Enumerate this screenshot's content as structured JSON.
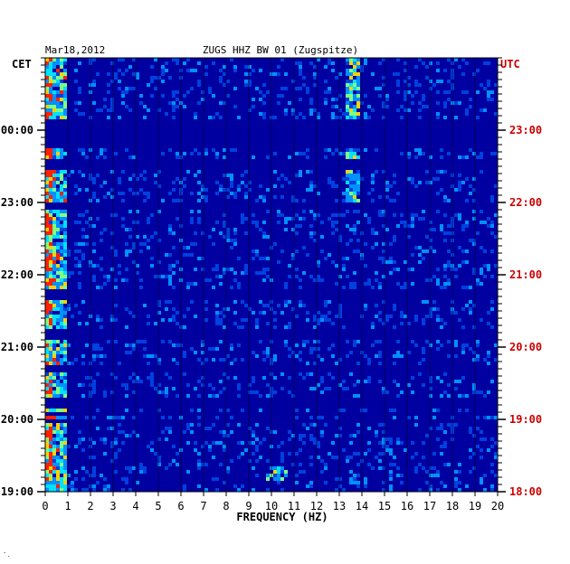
{
  "chart_data": {
    "type": "heatmap",
    "title": "ZUGS HHZ BW 01 (Zugspitze)",
    "date": "Mar18,2012",
    "xlabel": "FREQUENCY (HZ)",
    "xlim": [
      0,
      20
    ],
    "x_ticks": [
      "0",
      "1",
      "2",
      "3",
      "4",
      "5",
      "6",
      "7",
      "8",
      "9",
      "10",
      "11",
      "12",
      "13",
      "14",
      "15",
      "16",
      "17",
      "18",
      "19",
      "20"
    ],
    "left_axis_label": "CET",
    "right_axis_label": "UTC",
    "left_ticks": [
      "00:00",
      "23:00",
      "22:00",
      "21:00",
      "20:00",
      "19:00"
    ],
    "right_ticks": [
      "23:00",
      "22:00",
      "21:00",
      "20:00",
      "19:00",
      "18:00"
    ],
    "footer_mark": "·ˎ",
    "colors": {
      "left_tick_color": "#000000",
      "right_tick_color": "#cc0000",
      "background": "#0000a0"
    }
  }
}
